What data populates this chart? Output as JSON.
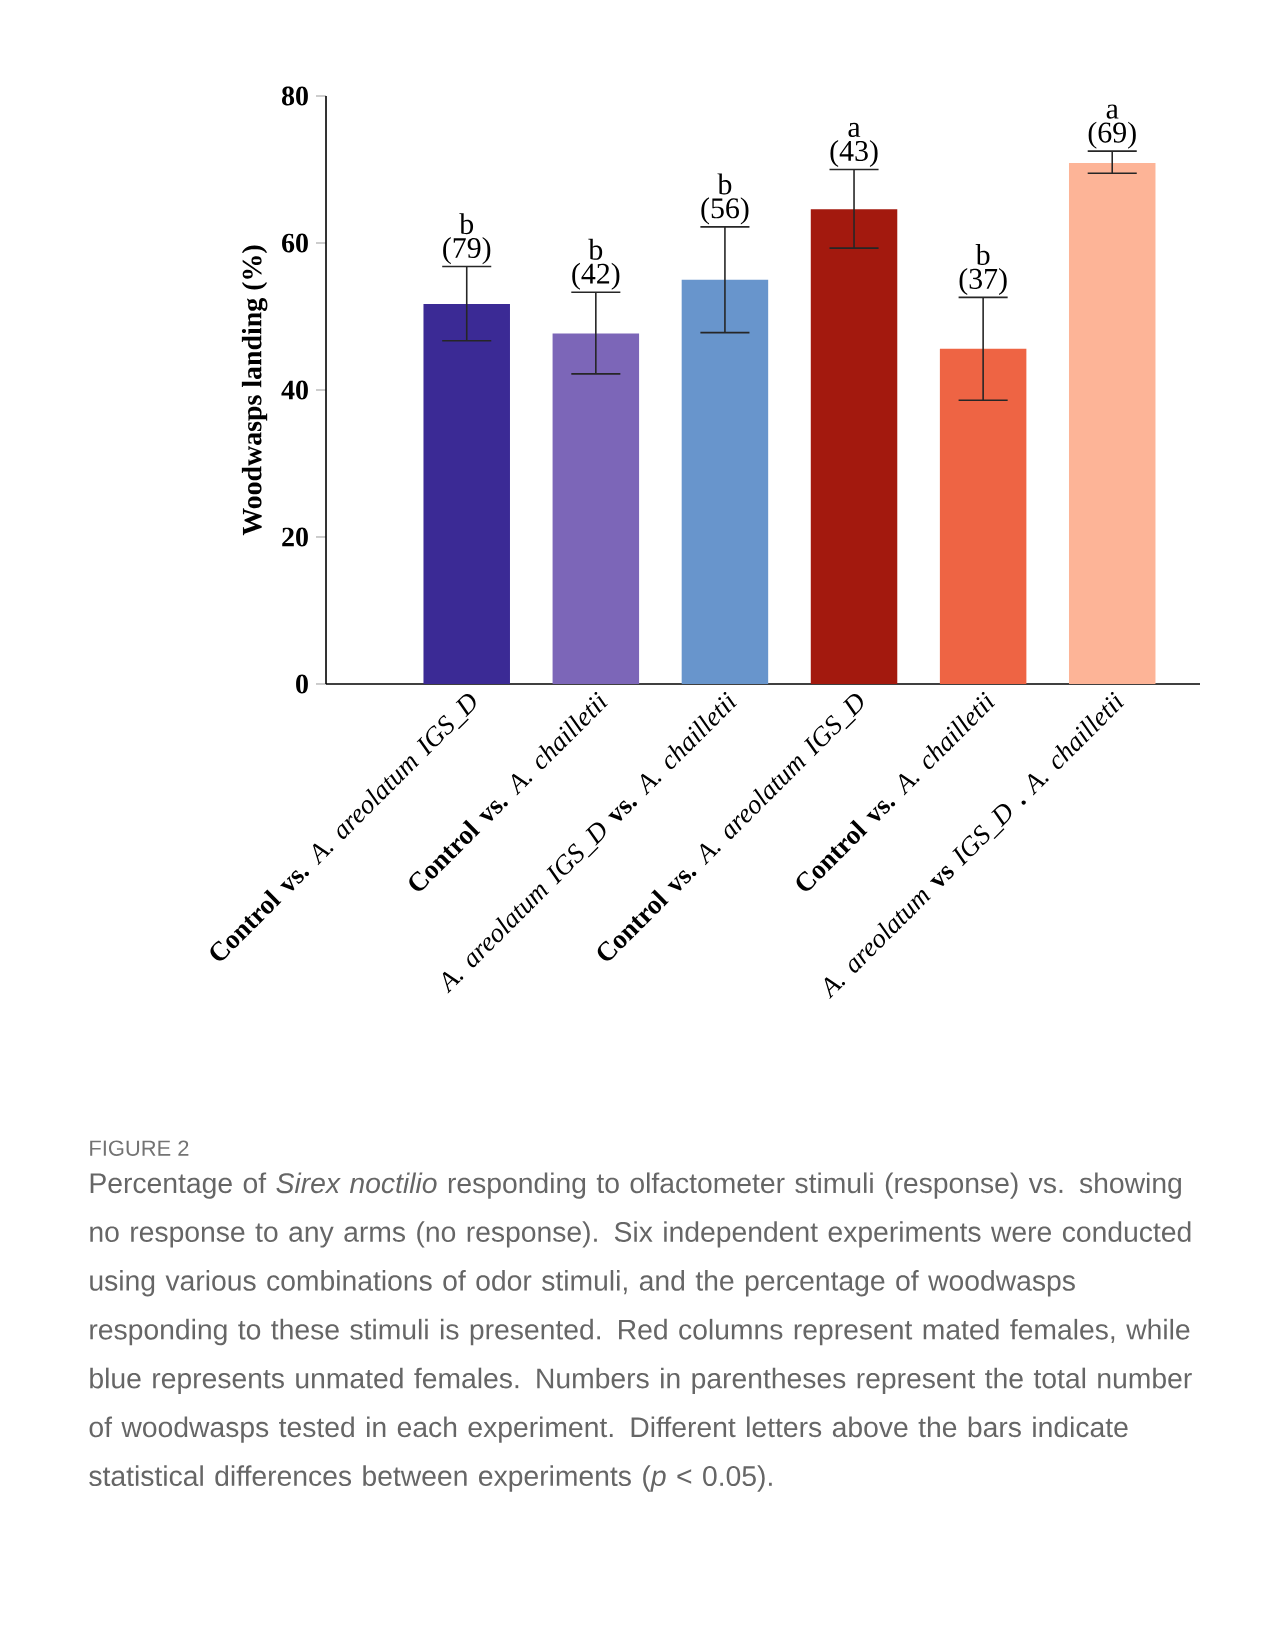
{
  "chart_data": {
    "type": "bar",
    "ylabel": "Woodwasps landing (%)",
    "categories": [
      "**Control vs.** *A. areolatum IGS_D*",
      "**Control vs.** *A. chailletii*",
      "*A. areolatum IGS_D* **vs.** *A. chailletii*",
      "**Control vs.** *A. areolatum IGS_D*",
      "**Control vs.** *A. chailletii*",
      "*A. areolatum* **vs** *IGS_D* **.** *A. chailletii*"
    ],
    "values": [
      51.7,
      47.7,
      55.0,
      64.6,
      45.6,
      70.9
    ],
    "colors": [
      "#3b2a95",
      "#7c66b8",
      "#6895cc",
      "#a3190e",
      "#ee6444",
      "#fdb497"
    ],
    "errors": [
      [
        46.7,
        56.8
      ],
      [
        42.2,
        53.3
      ],
      [
        47.8,
        62.2
      ],
      [
        59.3,
        70.0
      ],
      [
        38.6,
        52.6
      ],
      [
        69.5,
        72.5
      ]
    ],
    "ylim": [
      0,
      80
    ],
    "yticks": [
      0,
      20,
      40,
      60,
      80
    ],
    "annotations": [
      "b",
      "(79)",
      "b",
      "(42)",
      "b",
      "(56)",
      "a",
      "(43)",
      "b",
      "(37)",
      "a",
      "(69)",
      "FIGURE 2",
      "Percentage of *Sirex noctilio* responding to olfactometer stimuli (response) vs. showing no response to any arms (no response). Six independent experiments were conducted using various combinations of odor stimuli, and the percentage of woodwasps responding to these stimuli is presented. Red columns represent mated females, while blue represents unmated females. Numbers in parentheses represent the total number of woodwasps tested in each experiment. Different letters above the bars indicate statistical differences between experiments (*p* < 0.05)."
    ]
  }
}
